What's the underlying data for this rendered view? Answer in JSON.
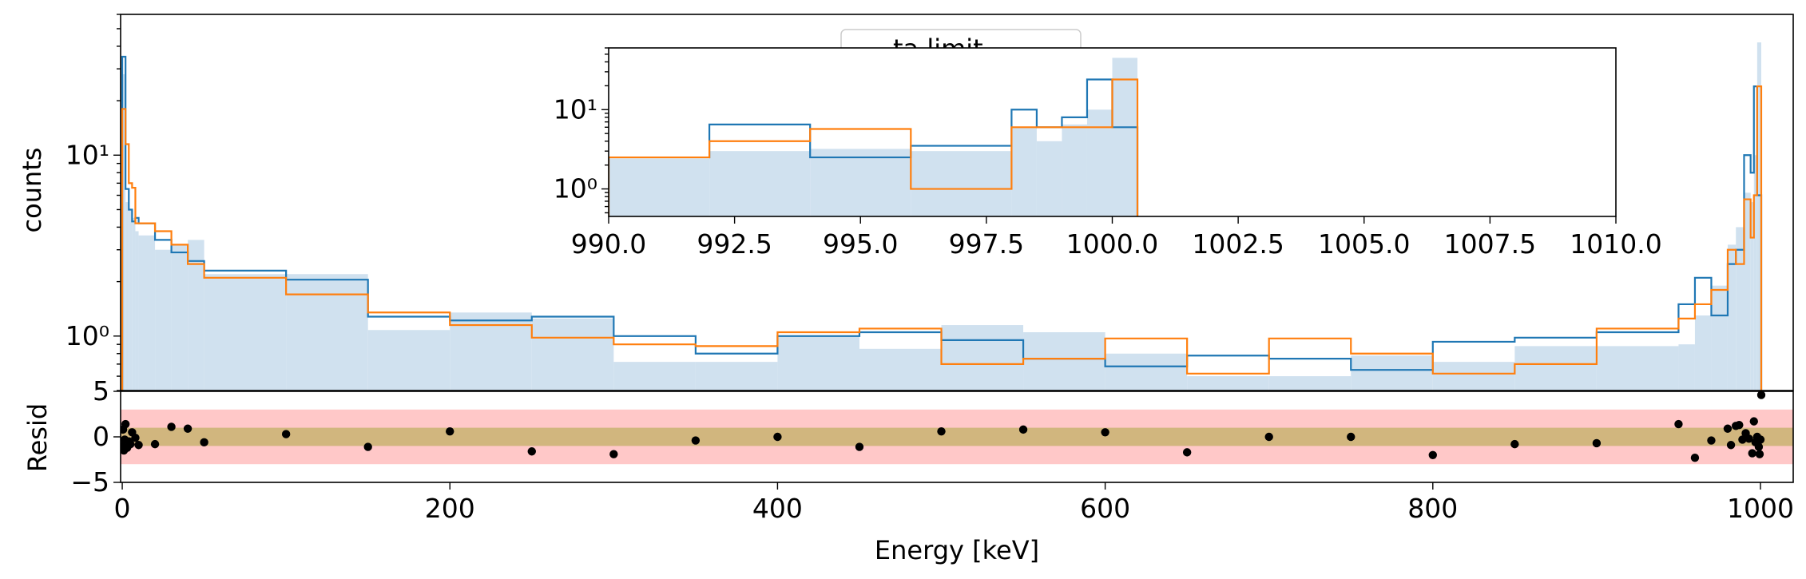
{
  "chart_data": [
    {
      "type": "histogram",
      "panel": "main",
      "yscale": "log",
      "ylabel": "counts",
      "ylim": [
        0.5,
        60
      ],
      "xlim": [
        -1,
        1020
      ],
      "yticks": [
        {
          "value": 1,
          "label": "10⁰"
        },
        {
          "value": 10,
          "label": "10¹"
        }
      ],
      "legend": {
        "position": "top-center",
        "visible_text": "ta limit"
      },
      "edges": [
        0,
        2,
        4,
        6,
        8,
        10,
        20,
        30,
        40,
        50,
        100,
        150,
        200,
        250,
        300,
        350,
        400,
        450,
        500,
        550,
        600,
        650,
        700,
        750,
        800,
        850,
        900,
        950,
        960,
        970,
        980,
        985,
        990,
        994,
        996,
        998,
        1000.5
      ],
      "series": [
        {
          "kind": "filled",
          "color": "#d0e1ef",
          "values": [
            28,
            5.5,
            5.0,
            4.5,
            3.8,
            3.6,
            3.0,
            3.2,
            3.4,
            2.2,
            2.2,
            1.08,
            1.35,
            1.25,
            0.72,
            0.72,
            1.0,
            0.85,
            1.15,
            1.05,
            0.8,
            0.6,
            0.6,
            0.78,
            0.72,
            0.88,
            0.88,
            0.9,
            1.3,
            1.9,
            3.2,
            4.0,
            6.2,
            5.5,
            10,
            42
          ]
        },
        {
          "kind": "step",
          "color": "#1f77b4",
          "values": [
            35,
            6.5,
            5.0,
            4.3,
            4.5,
            4.2,
            3.4,
            2.9,
            2.6,
            2.3,
            2.05,
            1.28,
            1.22,
            1.28,
            1.0,
            0.8,
            1.0,
            1.05,
            0.95,
            0.75,
            0.68,
            0.78,
            0.75,
            0.65,
            0.93,
            0.98,
            1.05,
            1.5,
            2.1,
            1.3,
            2.5,
            3.0,
            10,
            8,
            24,
            6
          ]
        },
        {
          "kind": "step",
          "color": "#ff7f0e",
          "values": [
            18,
            11.5,
            7,
            6.6,
            4.2,
            4.2,
            3.8,
            3.2,
            2.5,
            2.1,
            1.7,
            1.35,
            1.15,
            0.98,
            0.9,
            0.88,
            1.05,
            1.1,
            0.7,
            0.75,
            0.97,
            0.62,
            0.97,
            0.8,
            0.62,
            0.7,
            1.1,
            1.25,
            1.5,
            1.8,
            3,
            2.5,
            5.7,
            3.5,
            6,
            24
          ]
        }
      ]
    },
    {
      "type": "histogram",
      "panel": "inset",
      "yscale": "log",
      "ylim": [
        0.45,
        60
      ],
      "xlim": [
        990,
        1010
      ],
      "yticks": [
        {
          "value": 1,
          "label": "10⁰"
        },
        {
          "value": 10,
          "label": "10¹"
        }
      ],
      "xticks": [
        "990.0",
        "992.5",
        "995.0",
        "997.5",
        "1000.0",
        "1002.5",
        "1005.0",
        "1007.5",
        "1010.0"
      ],
      "edges": [
        990,
        992,
        994,
        996,
        998,
        998.5,
        999,
        999.5,
        1000,
        1000.5
      ],
      "series": [
        {
          "kind": "filled",
          "color": "#d0e1ef",
          "values": [
            2.4,
            3.0,
            3.2,
            3.0,
            6.0,
            4.0,
            6.5,
            10,
            45
          ]
        },
        {
          "kind": "step",
          "color": "#1f77b4",
          "values": [
            2.5,
            6.5,
            2.5,
            3.5,
            10,
            6,
            8,
            24,
            6
          ]
        },
        {
          "kind": "step",
          "color": "#ff7f0e",
          "values": [
            2.5,
            4.0,
            5.7,
            1.0,
            6.0,
            6.0,
            6.0,
            6.0,
            24
          ]
        }
      ]
    },
    {
      "type": "scatter",
      "panel": "residuals",
      "xlabel": "Energy [keV]",
      "ylabel": "Resid",
      "xlim": [
        -1,
        1020
      ],
      "ylim": [
        -5,
        5
      ],
      "xticks": [
        "0",
        "200",
        "400",
        "600",
        "800",
        "1000"
      ],
      "yticks": [
        "−5",
        "0",
        "5"
      ],
      "bands": [
        {
          "from": -3,
          "to": 3,
          "color": "#ffc8c8"
        },
        {
          "from": -1,
          "to": 1,
          "color": "#d1b67e"
        }
      ],
      "points": [
        [
          0,
          -1.0
        ],
        [
          0.5,
          0.8
        ],
        [
          1,
          -1.5
        ],
        [
          1.5,
          -0.3
        ],
        [
          2,
          1.4
        ],
        [
          3,
          -1.2
        ],
        [
          4,
          -0.5
        ],
        [
          5,
          -0.8
        ],
        [
          6,
          0.5
        ],
        [
          8,
          -0.1
        ],
        [
          10,
          -0.9
        ],
        [
          20,
          -0.8
        ],
        [
          30,
          1.1
        ],
        [
          40,
          0.9
        ],
        [
          50,
          -0.6
        ],
        [
          100,
          0.3
        ],
        [
          150,
          -1.1
        ],
        [
          200,
          0.6
        ],
        [
          250,
          -1.6
        ],
        [
          300,
          -1.9
        ],
        [
          350,
          -0.4
        ],
        [
          400,
          0.0
        ],
        [
          450,
          -1.1
        ],
        [
          500,
          0.6
        ],
        [
          550,
          0.8
        ],
        [
          600,
          0.5
        ],
        [
          650,
          -1.7
        ],
        [
          700,
          -0.0
        ],
        [
          750,
          0.0
        ],
        [
          800,
          -2.0
        ],
        [
          850,
          -0.8
        ],
        [
          900,
          -0.7
        ],
        [
          950,
          1.4
        ],
        [
          960,
          -2.3
        ],
        [
          970,
          -0.4
        ],
        [
          980,
          0.9
        ],
        [
          982,
          -0.9
        ],
        [
          985,
          1.2
        ],
        [
          987,
          1.3
        ],
        [
          989,
          -0.3
        ],
        [
          991,
          0.4
        ],
        [
          993,
          -0.2
        ],
        [
          995,
          -1.8
        ],
        [
          996,
          1.7
        ],
        [
          997,
          -0.6
        ],
        [
          998,
          0.0
        ],
        [
          999,
          -1.1
        ],
        [
          999.5,
          -1.9
        ],
        [
          1000,
          -0.3
        ],
        [
          1000.5,
          4.6
        ]
      ]
    }
  ]
}
